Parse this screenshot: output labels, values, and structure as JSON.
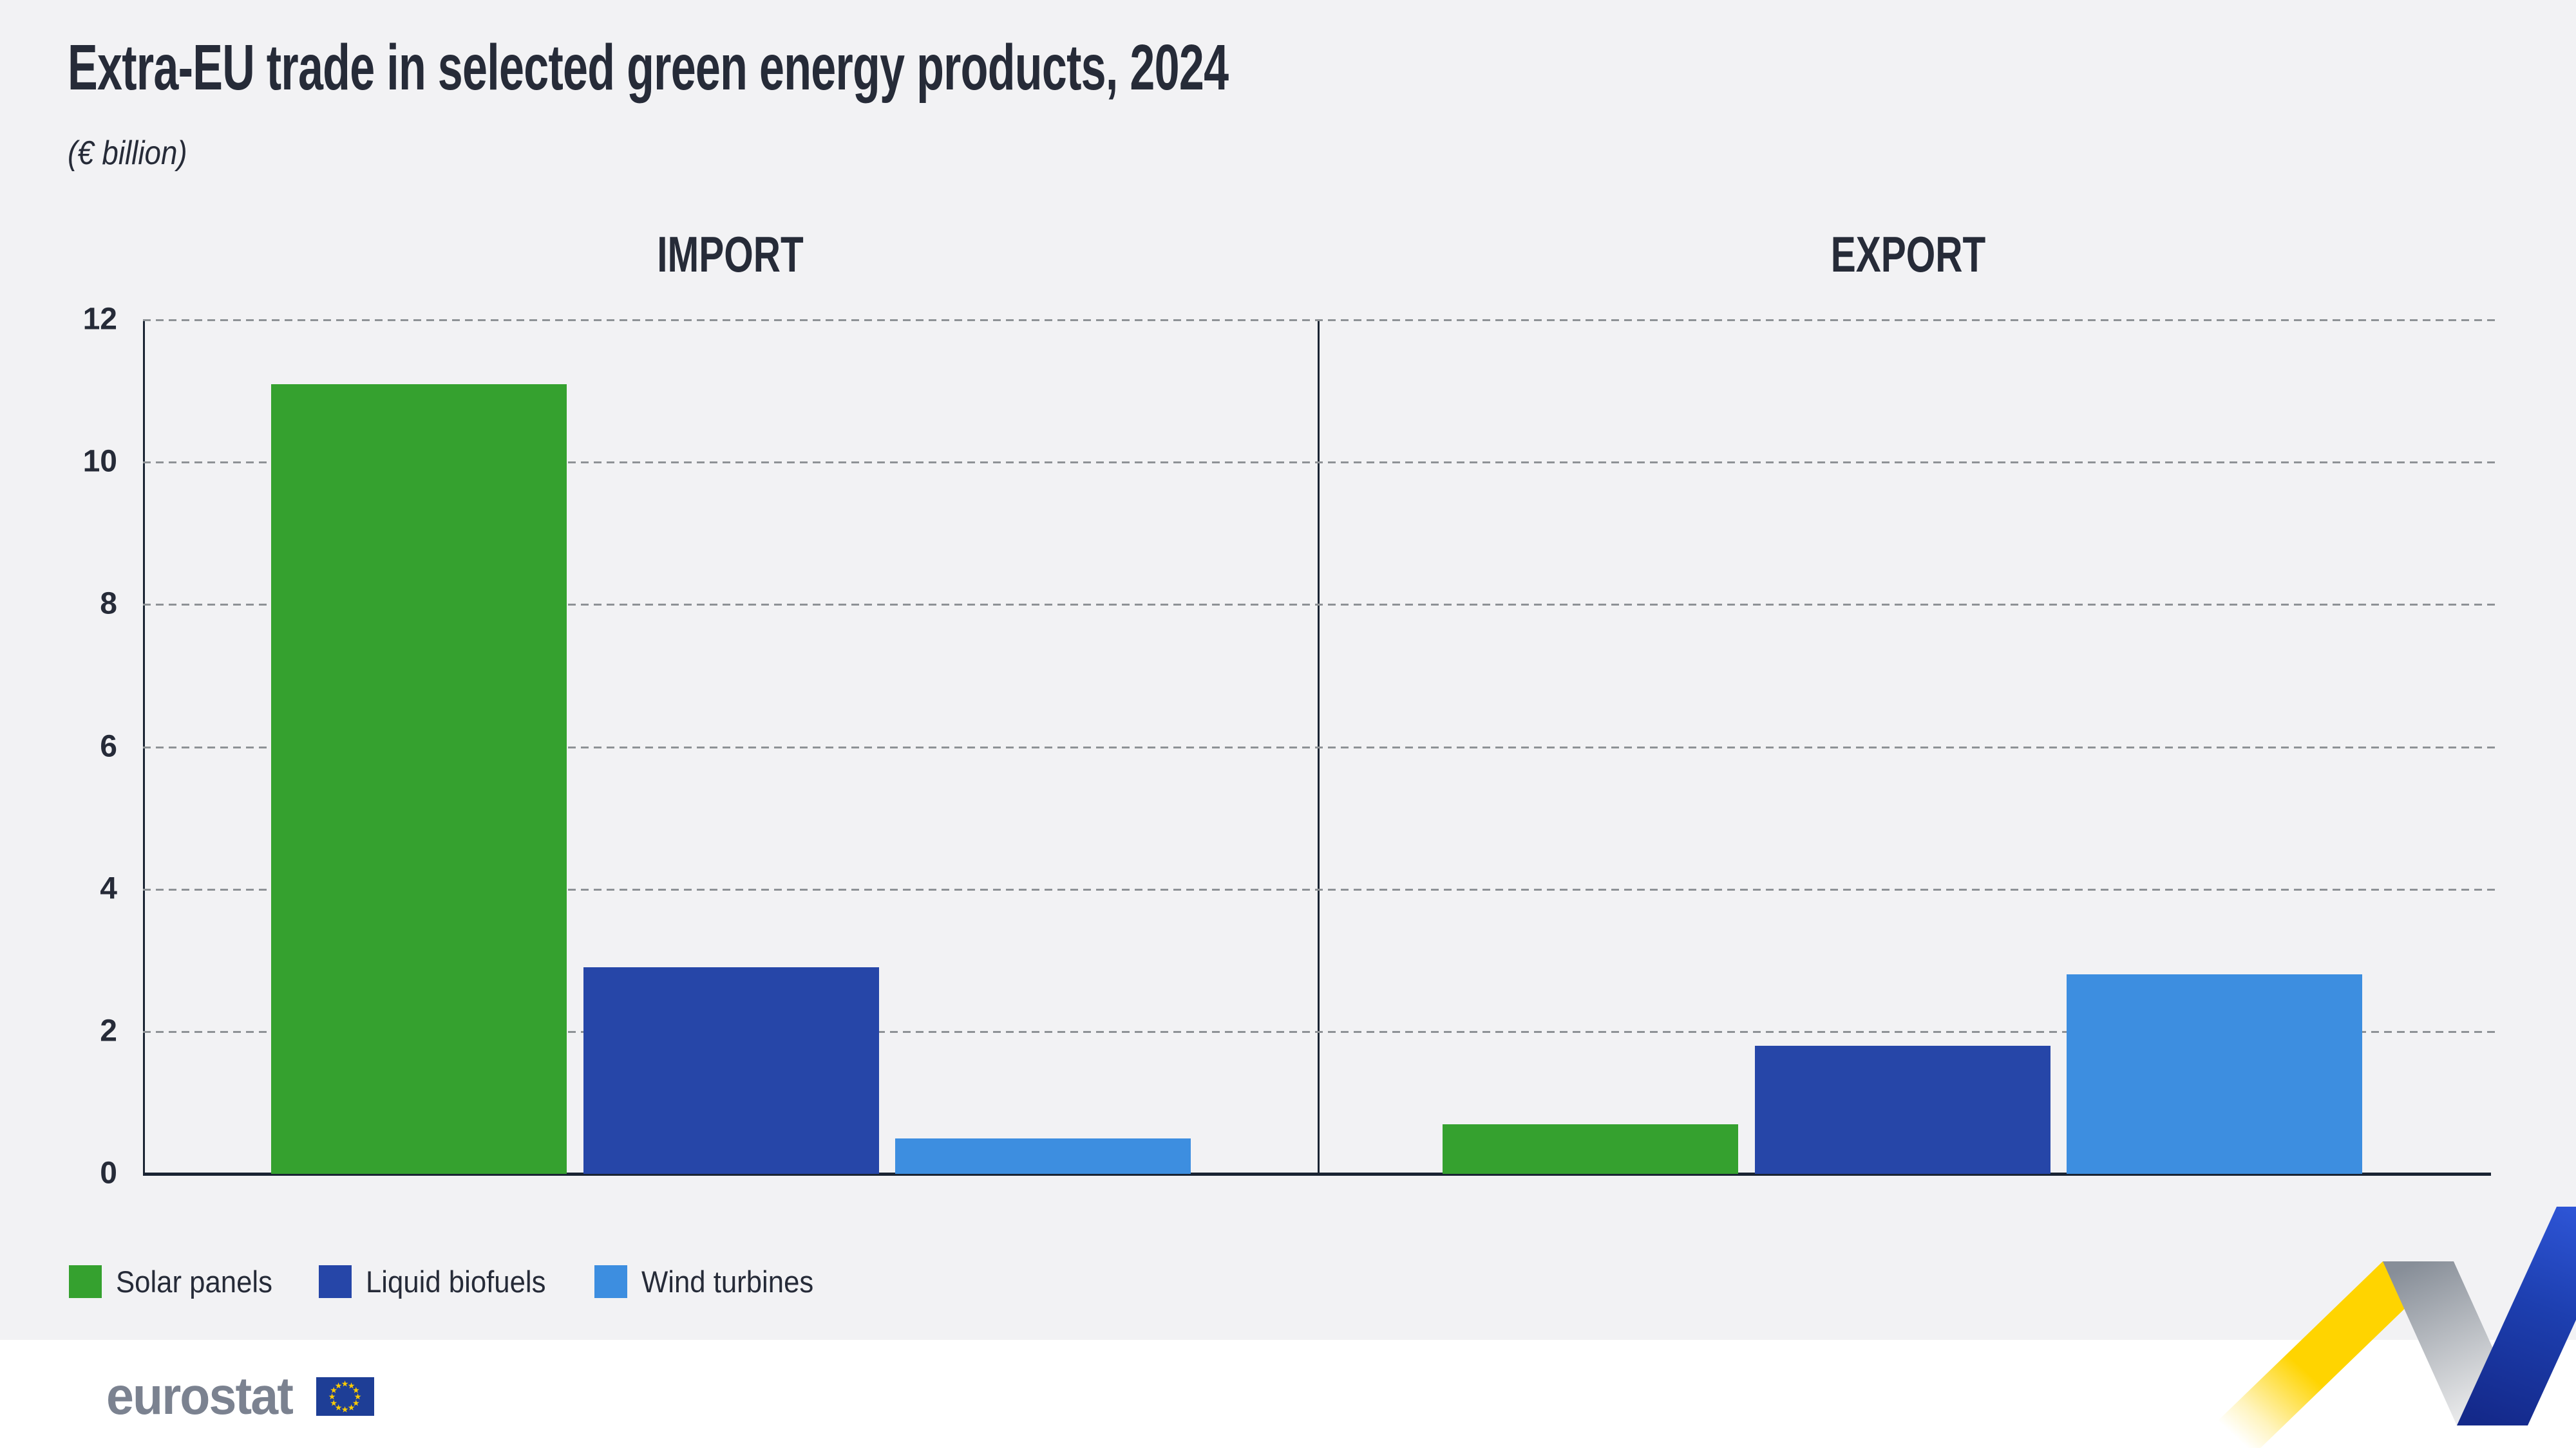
{
  "title": "Extra-EU trade in selected green energy products, 2024",
  "subtitle": "(€ billion)",
  "panels": [
    {
      "label": "IMPORT"
    },
    {
      "label": "EXPORT"
    }
  ],
  "chart_data": {
    "type": "bar",
    "title": "Extra-EU trade in selected green energy products, 2024",
    "subtitle": "(€ billion)",
    "unit": "€ billion",
    "categories": [
      "Solar panels",
      "Liquid biofuels",
      "Wind turbines"
    ],
    "series": [
      {
        "name": "IMPORT",
        "values": [
          11.1,
          2.9,
          0.5
        ]
      },
      {
        "name": "EXPORT",
        "values": [
          0.7,
          1.8,
          2.8
        ]
      }
    ],
    "ylim": [
      0,
      12
    ],
    "yticks": [
      0,
      2,
      4,
      6,
      8,
      10,
      12
    ],
    "grid": "horizontal-dashed",
    "legend_position": "bottom-left",
    "palette": [
      "#35A12F",
      "#2646A8",
      "#3D8EE0"
    ]
  },
  "legend": {
    "items": [
      {
        "label": "Solar panels",
        "color": "#35A12F"
      },
      {
        "label": "Liquid biofuels",
        "color": "#2646A8"
      },
      {
        "label": "Wind turbines",
        "color": "#3D8EE0"
      }
    ]
  },
  "footer": {
    "wordmark": "eurostat"
  },
  "colors": {
    "background": "#F2F2F4",
    "footer_background": "#FFFFFF",
    "text": "#262B38",
    "axis": "#1A2433",
    "grid": "#8E9296",
    "logo_gray": "#7B8290",
    "flag_blue": "#1E3E96",
    "star_yellow": "#FFCC00",
    "ribbon_yellow": "#FFD400",
    "ribbon_gray": "#8F969E",
    "ribbon_blue_dark": "#14298A",
    "ribbon_blue": "#2E55D6"
  }
}
